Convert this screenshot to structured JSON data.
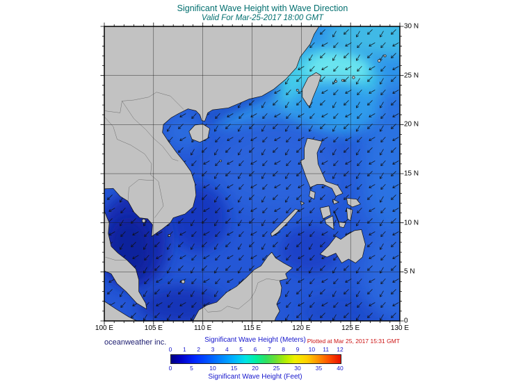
{
  "header": {
    "title": "Significant Wave Height with Wave Direction",
    "subtitle": "Valid For Mar-25-2017 18:00 GMT"
  },
  "map_axes": {
    "lon_ticks": [
      "100 E",
      "105 E",
      "110 E",
      "115 E",
      "120 E",
      "125 E",
      "130 E"
    ],
    "lat_ticks": [
      "30 N",
      "25 N",
      "20 N",
      "15 N",
      "10 N",
      "5 N",
      "0"
    ]
  },
  "footer": {
    "credit": "oceanweather inc.",
    "plotted_note": "Plotted at Mar 25, 2017 15:31 GMT"
  },
  "colorbar": {
    "meters_label": "Significant Wave Height (Meters)",
    "meters_ticks": [
      "0",
      "1",
      "2",
      "3",
      "4",
      "5",
      "6",
      "7",
      "8",
      "9",
      "10",
      "11",
      "12"
    ],
    "feet_label": "Significant Wave Height (Feet)",
    "feet_ticks": [
      "0",
      "5",
      "10",
      "15",
      "20",
      "25",
      "30",
      "35",
      "40"
    ],
    "gradient_hex": [
      "#000082",
      "#0026ff",
      "#0088ff",
      "#00e4e4",
      "#30e060",
      "#f0f000",
      "#ff9800",
      "#e81000"
    ]
  },
  "colors": {
    "title_teal": "#006e6e",
    "label_blue": "#1515cc",
    "plotted_red": "#cc1111",
    "credit_navy": "#1a1a6e",
    "land_gray": "#c2c2c2",
    "ocean_blue": "#2457d6",
    "high_seas_cyan": "#6ae4ef",
    "arrow_black": "#0d0d0d"
  },
  "chart_data": {
    "type": "heatmap",
    "title": "Significant Wave Height with Wave Direction",
    "valid_time": "Mar-25-2017 18:00 GMT",
    "region": "South China Sea / Western Pacific",
    "x_axis": {
      "ticks_deg_east": [
        100,
        105,
        110,
        115,
        120,
        125,
        130
      ]
    },
    "y_axis": {
      "ticks_deg_north": [
        0,
        5,
        10,
        15,
        20,
        25,
        30
      ]
    },
    "colorbar": {
      "meters_range": [
        0,
        12
      ],
      "feet_range": [
        0,
        40
      ]
    },
    "wave_direction": "arrows point generally toward the southwest",
    "approx_field_m": [
      {
        "area": "NE of Taiwan / Luzon Strait",
        "hs_m": 3.5
      },
      {
        "area": "Taiwan Strait and SE China coast",
        "hs_m": 2.5
      },
      {
        "area": "central South China Sea",
        "hs_m": 1.5
      },
      {
        "area": "Gulf of Thailand",
        "hs_m": 0.5
      },
      {
        "area": "Sulu and Celebes Seas",
        "hs_m": 1.0
      },
      {
        "area": "Pacific east of the Philippines",
        "hs_m": 1.5
      }
    ]
  }
}
